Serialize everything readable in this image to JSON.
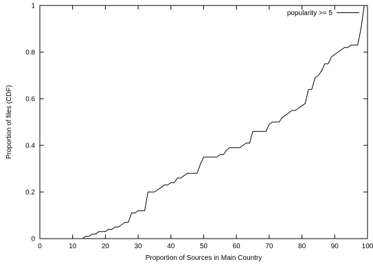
{
  "chart_data": {
    "type": "line",
    "title": "",
    "xlabel": "Proportion of Sources in Main Country",
    "ylabel": "Proportion of files (CDF)",
    "xlim": [
      0,
      100
    ],
    "ylim": [
      0,
      1
    ],
    "xticks": [
      "0",
      "10",
      "20",
      "30",
      "40",
      "50",
      "60",
      "70",
      "80",
      "90",
      "100"
    ],
    "yticks": [
      "0",
      "0.2",
      "0.4",
      "0.6",
      "0.8",
      "1"
    ],
    "grid": false,
    "legend_position": "top-right",
    "series": [
      {
        "name": "popularity >= 5",
        "x": [
          0,
          13,
          14,
          15,
          16,
          17,
          18,
          19,
          20,
          21,
          22,
          23,
          24,
          25,
          26,
          27,
          28,
          29,
          30,
          31,
          32,
          33,
          34,
          35,
          36,
          37,
          38,
          39,
          40,
          41,
          42,
          43,
          44,
          45,
          46,
          47,
          48,
          49,
          50,
          51,
          52,
          53,
          54,
          55,
          56,
          57,
          58,
          59,
          60,
          61,
          62,
          63,
          64,
          65,
          66,
          67,
          68,
          69,
          70,
          71,
          72,
          73,
          74,
          75,
          76,
          77,
          78,
          79,
          80,
          81,
          82,
          83,
          84,
          85,
          86,
          87,
          88,
          89,
          90,
          91,
          92,
          93,
          94,
          95,
          96,
          97,
          98,
          99,
          100
        ],
        "y": [
          0,
          0,
          0.01,
          0.01,
          0.02,
          0.02,
          0.03,
          0.03,
          0.03,
          0.04,
          0.04,
          0.05,
          0.05,
          0.06,
          0.07,
          0.07,
          0.11,
          0.11,
          0.12,
          0.12,
          0.12,
          0.2,
          0.2,
          0.2,
          0.21,
          0.22,
          0.23,
          0.23,
          0.24,
          0.24,
          0.26,
          0.26,
          0.27,
          0.28,
          0.28,
          0.28,
          0.28,
          0.32,
          0.35,
          0.35,
          0.35,
          0.35,
          0.35,
          0.36,
          0.36,
          0.38,
          0.39,
          0.39,
          0.39,
          0.39,
          0.4,
          0.41,
          0.41,
          0.46,
          0.46,
          0.46,
          0.46,
          0.46,
          0.49,
          0.5,
          0.5,
          0.5,
          0.52,
          0.53,
          0.54,
          0.55,
          0.55,
          0.56,
          0.57,
          0.58,
          0.64,
          0.64,
          0.69,
          0.7,
          0.72,
          0.75,
          0.75,
          0.78,
          0.79,
          0.8,
          0.81,
          0.82,
          0.82,
          0.83,
          0.83,
          0.83,
          0.9,
          1.0,
          1.0
        ]
      }
    ]
  }
}
